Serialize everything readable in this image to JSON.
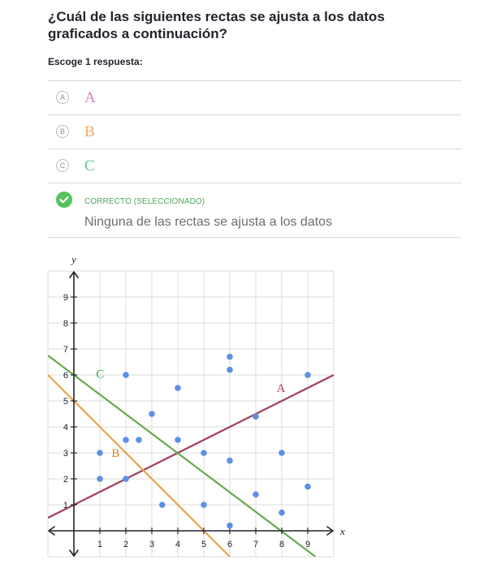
{
  "question": "¿Cuál de las siguientes rectas se ajusta a los datos graficados a continuación?",
  "instruction": "Escoge 1 respuesta:",
  "choices": [
    {
      "letter": "A",
      "label": "A",
      "color": "#e07ab4"
    },
    {
      "letter": "B",
      "label": "B",
      "color": "#f0a96a"
    },
    {
      "letter": "C",
      "label": "C",
      "color": "#5fc48a"
    }
  ],
  "selected_choice": {
    "status": "CORRECTO (SELECCIONADO)",
    "text": "Ninguna de las rectas se ajusta a los datos",
    "icon": "check-icon",
    "accent": "#57c15e"
  },
  "chart_data": {
    "type": "scatter",
    "xlabel": "x",
    "ylabel": "y",
    "xlim": [
      -1,
      10
    ],
    "ylim": [
      -1,
      10
    ],
    "xticks": [
      1,
      2,
      3,
      4,
      5,
      6,
      7,
      8,
      9
    ],
    "yticks": [
      1,
      2,
      3,
      4,
      5,
      6,
      7,
      8,
      9
    ],
    "grid": true,
    "points": [
      [
        1,
        2
      ],
      [
        1,
        3
      ],
      [
        2,
        2
      ],
      [
        2,
        3.5
      ],
      [
        2,
        6
      ],
      [
        2.5,
        3.5
      ],
      [
        3,
        4.5
      ],
      [
        3.4,
        1
      ],
      [
        4,
        3.5
      ],
      [
        4,
        5.5
      ],
      [
        5,
        3
      ],
      [
        5,
        1
      ],
      [
        6,
        6.7
      ],
      [
        6,
        6.2
      ],
      [
        6,
        2.7
      ],
      [
        6,
        0.2
      ],
      [
        7,
        4.4
      ],
      [
        7,
        1.4
      ],
      [
        8,
        3
      ],
      [
        8,
        0.7
      ],
      [
        9,
        6
      ],
      [
        9,
        1.7
      ]
    ],
    "point_color": "#5e8fe6",
    "lines": [
      {
        "name": "A",
        "color": "#a0405e",
        "label_color": "#b03a6e",
        "x1": -1,
        "y1": 0.5,
        "x2": 10,
        "y2": 6,
        "label_x": 7.8,
        "label_y": 5.5
      },
      {
        "name": "B",
        "color": "#e8a24d",
        "label_color": "#d7871f",
        "x1": -1,
        "y1": 6,
        "x2": 6,
        "y2": -1,
        "label_x": 1.45,
        "label_y": 3
      },
      {
        "name": "C",
        "color": "#6aa84f",
        "label_color": "#34a35a",
        "x1": -1,
        "y1": 6.75,
        "x2": 9.3,
        "y2": -1,
        "label_x": 0.85,
        "label_y": 6.05
      }
    ]
  }
}
